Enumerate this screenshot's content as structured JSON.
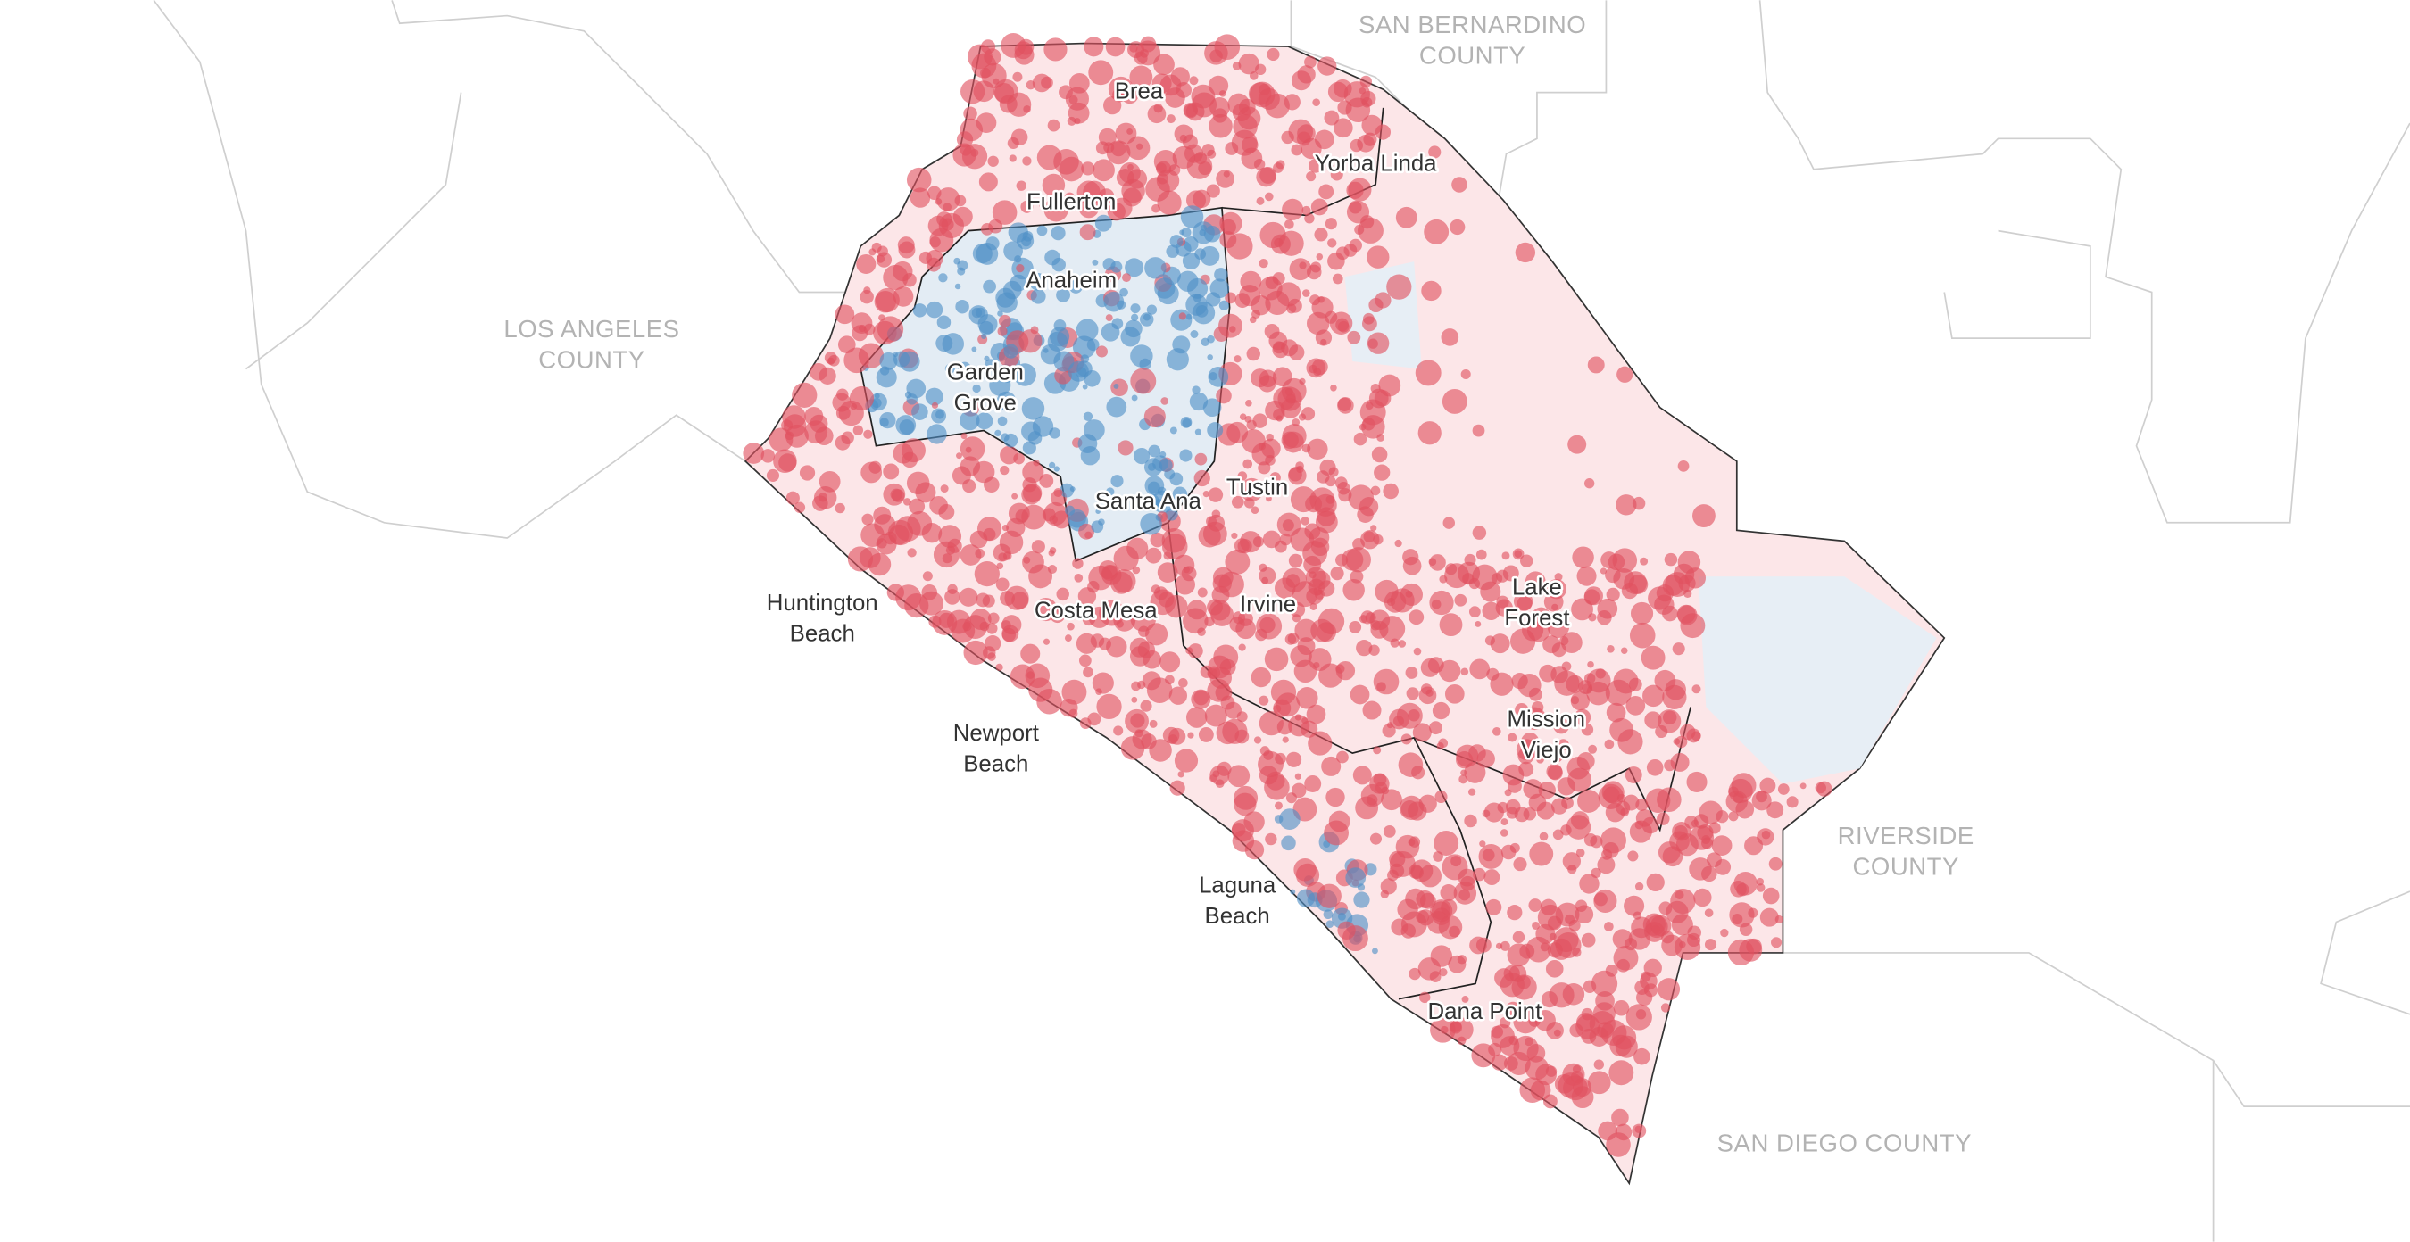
{
  "county_labels": [
    {
      "lines": [
        "SAN BERNARDINO",
        "COUNTY"
      ]
    },
    {
      "lines": [
        "LOS ANGELES",
        "COUNTY"
      ]
    },
    {
      "lines": [
        "RIVERSIDE",
        "COUNTY"
      ]
    },
    {
      "lines": [
        "SAN DIEGO COUNTY"
      ]
    }
  ],
  "city_labels": [
    {
      "lines": [
        "Brea"
      ]
    },
    {
      "lines": [
        "Yorba Linda"
      ]
    },
    {
      "lines": [
        "Fullerton"
      ]
    },
    {
      "lines": [
        "Anaheim"
      ]
    },
    {
      "lines": [
        "Garden",
        "Grove"
      ]
    },
    {
      "lines": [
        "Santa Ana"
      ]
    },
    {
      "lines": [
        "Tustin"
      ]
    },
    {
      "lines": [
        "Huntington",
        "Beach"
      ]
    },
    {
      "lines": [
        "Costa Mesa"
      ]
    },
    {
      "lines": [
        "Irvine"
      ]
    },
    {
      "lines": [
        "Lake",
        "Forest"
      ]
    },
    {
      "lines": [
        "Mission",
        "Viejo"
      ]
    },
    {
      "lines": [
        "Newport",
        "Beach"
      ]
    },
    {
      "lines": [
        "Laguna",
        "Beach"
      ]
    },
    {
      "lines": [
        "Dana Point"
      ]
    }
  ]
}
